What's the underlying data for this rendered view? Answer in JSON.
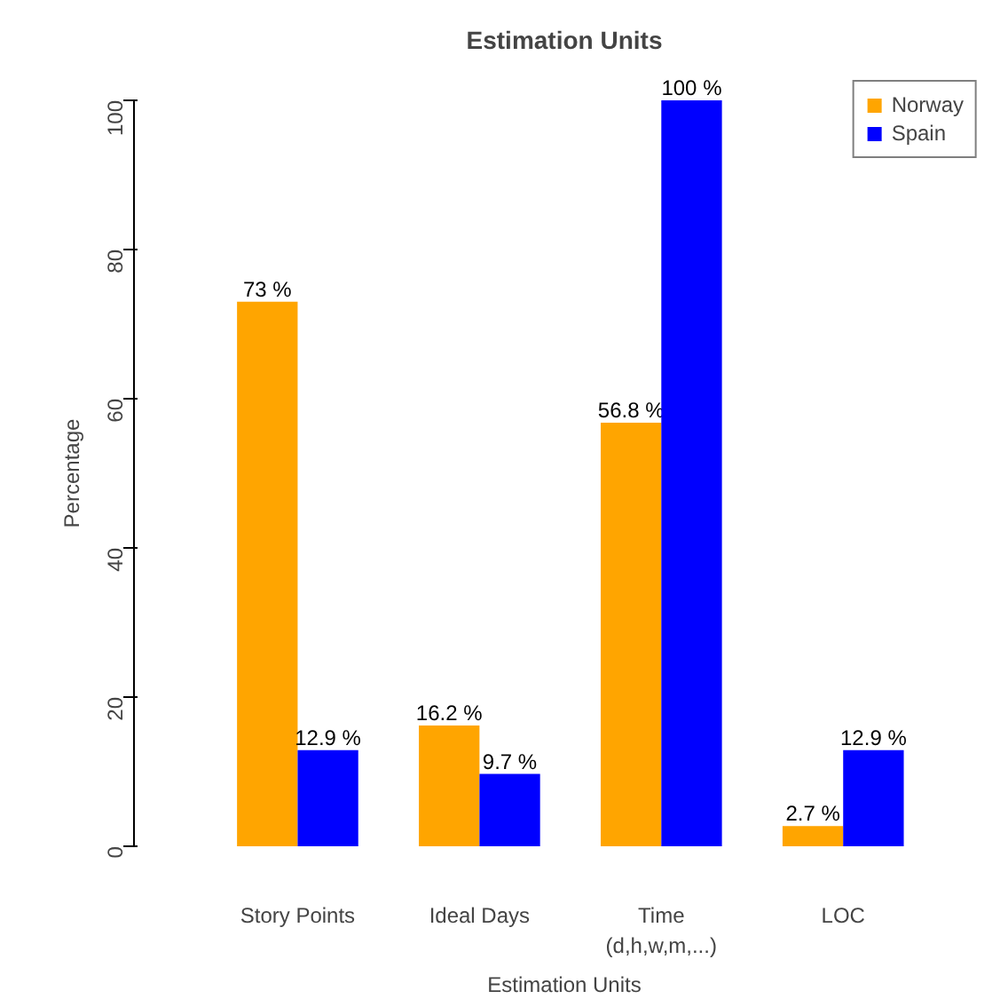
{
  "chart_data": {
    "type": "bar",
    "title": "Estimation Units",
    "xlabel": "Estimation Units",
    "ylabel": "Percentage",
    "categories": [
      "Story Points",
      "Ideal Days",
      "Time\n(d,h,w,m,...)",
      "LOC"
    ],
    "series": [
      {
        "name": "Norway",
        "color": "#ffa500",
        "values": [
          73,
          16.2,
          56.8,
          2.7
        ],
        "value_labels": [
          "73 %",
          "16.2 %",
          "56.8 %",
          "2.7 %"
        ]
      },
      {
        "name": "Spain",
        "color": "#0000ff",
        "values": [
          12.9,
          9.7,
          100,
          12.9
        ],
        "value_labels": [
          "12.9 %",
          "9.7 %",
          "100 %",
          "12.9 %"
        ]
      }
    ],
    "ylim": [
      0,
      100
    ],
    "yticks": [
      0,
      20,
      40,
      60,
      80,
      100
    ],
    "grid": false,
    "legend": "top right"
  }
}
